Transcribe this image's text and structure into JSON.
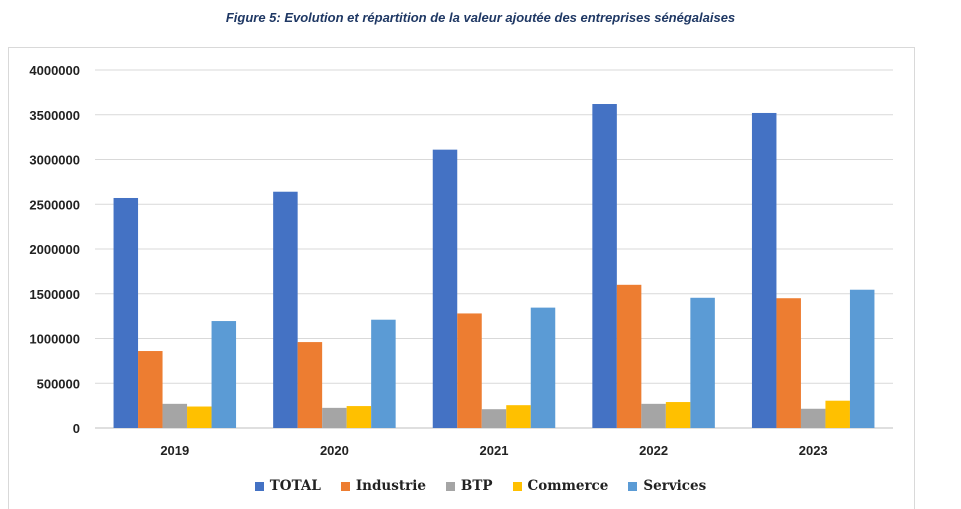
{
  "chart_data": {
    "type": "bar",
    "title": "Figure 5: Evolution et répartition de la valeur ajoutée des entreprises sénégalaises",
    "categories": [
      "2019",
      "2020",
      "2021",
      "2022",
      "2023"
    ],
    "series": [
      {
        "name": "TOTAL",
        "color": "#4472C4",
        "values": [
          2570000,
          2640000,
          3110000,
          3620000,
          3520000
        ]
      },
      {
        "name": "Industrie",
        "color": "#ED7D31",
        "values": [
          860000,
          960000,
          1280000,
          1600000,
          1450000
        ]
      },
      {
        "name": "BTP",
        "color": "#A5A5A5",
        "values": [
          270000,
          225000,
          210000,
          270000,
          215000
        ]
      },
      {
        "name": "Commerce",
        "color": "#FFC000",
        "values": [
          240000,
          245000,
          255000,
          290000,
          305000
        ]
      },
      {
        "name": "Services",
        "color": "#5B9BD5",
        "values": [
          1195000,
          1210000,
          1345000,
          1455000,
          1545000
        ]
      }
    ],
    "yticks": [
      "0",
      "500000",
      "1000000",
      "1500000",
      "2000000",
      "2500000",
      "3000000",
      "3500000",
      "4000000"
    ],
    "ylim": [
      0,
      4000000
    ],
    "xlabel": "",
    "ylabel": "",
    "grid": true,
    "legend_position": "bottom"
  }
}
